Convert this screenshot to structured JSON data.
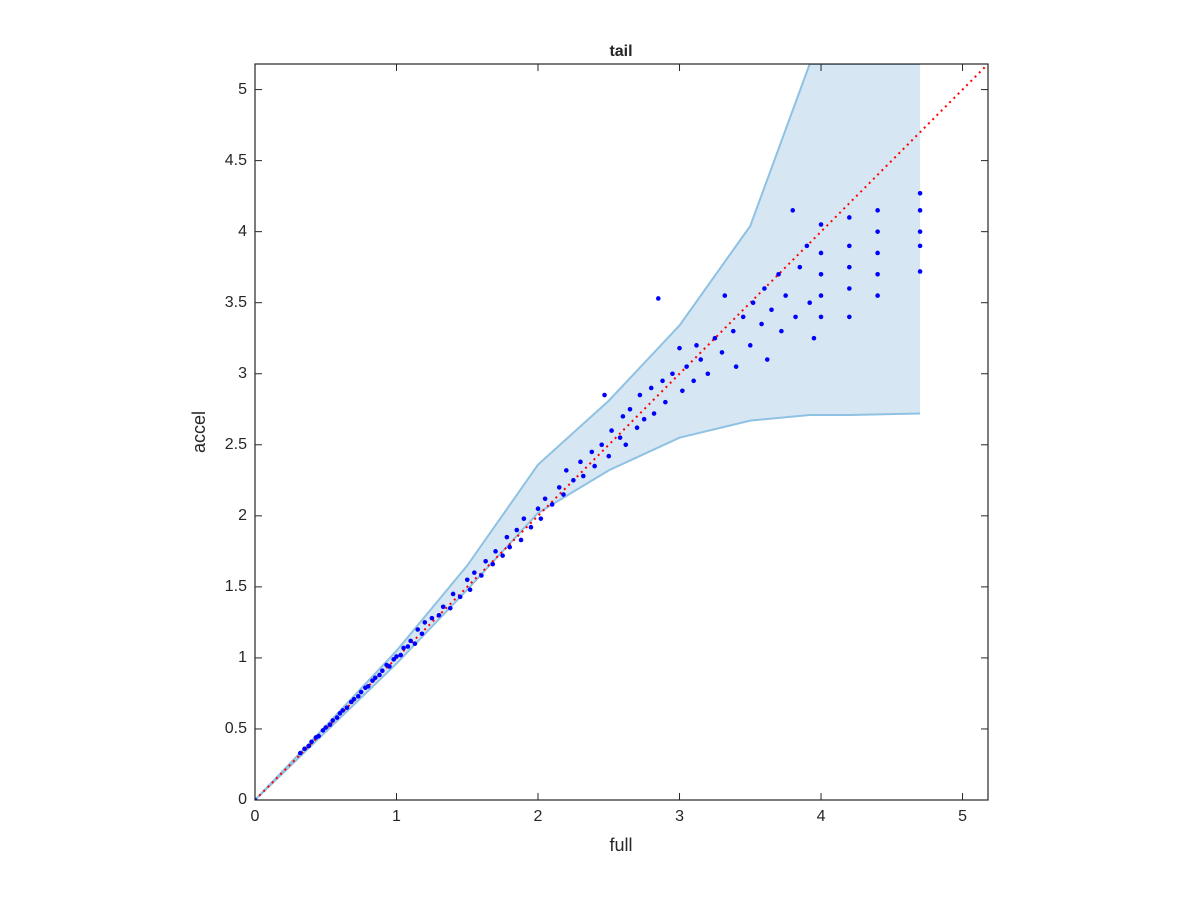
{
  "chart_data": {
    "type": "scatter",
    "title": "tail",
    "x_label": "full",
    "y_label": "accel",
    "xlim": [
      0,
      5.18
    ],
    "ylim": [
      0,
      5.18
    ],
    "xticks": [
      0,
      1,
      2,
      3,
      4,
      5
    ],
    "yticks": [
      0,
      0.5,
      1,
      1.5,
      2,
      2.5,
      3,
      3.5,
      4,
      4.5,
      5
    ],
    "color": "#0000ff",
    "band": {
      "color": "#d6e7f3",
      "edge_color": "#8fc1e3",
      "x": [
        0,
        0.5,
        1,
        1.5,
        2,
        2.5,
        3,
        3.5,
        3.92,
        4.2,
        4.7
      ],
      "upper": [
        0,
        0.52,
        1.05,
        1.65,
        2.36,
        2.81,
        3.34,
        4.04,
        5.18,
        5.18,
        5.18
      ],
      "lower": [
        0,
        0.48,
        0.96,
        1.48,
        2.02,
        2.32,
        2.55,
        2.67,
        2.71,
        2.71,
        2.72
      ]
    },
    "reference_line": {
      "color": "#ff0000",
      "x": [
        0,
        5.18
      ],
      "y": [
        0,
        5.18
      ]
    },
    "x": [
      0,
      0.32,
      0.35,
      0.38,
      0.4,
      0.43,
      0.45,
      0.48,
      0.5,
      0.53,
      0.55,
      0.58,
      0.6,
      0.62,
      0.65,
      0.68,
      0.7,
      0.73,
      0.75,
      0.78,
      0.8,
      0.83,
      0.85,
      0.88,
      0.9,
      0.93,
      0.95,
      0.98,
      1.0,
      1.03,
      1.05,
      1.08,
      1.1,
      1.13,
      1.15,
      1.18,
      1.2,
      1.25,
      1.3,
      1.33,
      1.38,
      1.4,
      1.45,
      1.5,
      1.52,
      1.55,
      1.6,
      1.63,
      1.68,
      1.7,
      1.75,
      1.78,
      1.8,
      1.85,
      1.88,
      1.9,
      1.95,
      2.0,
      2.02,
      2.05,
      2.1,
      2.15,
      2.18,
      2.2,
      2.25,
      2.3,
      2.32,
      2.38,
      2.4,
      2.45,
      2.47,
      2.5,
      2.52,
      2.58,
      2.6,
      2.62,
      2.65,
      2.7,
      2.72,
      2.75,
      2.8,
      2.82,
      2.85,
      2.88,
      2.9,
      2.95,
      3.0,
      3.02,
      3.05,
      3.1,
      3.12,
      3.15,
      3.2,
      3.25,
      3.3,
      3.32,
      3.38,
      3.4,
      3.45,
      3.5,
      3.52,
      3.58,
      3.6,
      3.62,
      3.65,
      3.7,
      3.72,
      3.75,
      3.8,
      3.82,
      3.85,
      3.9,
      3.92,
      3.95,
      4.0,
      4.0,
      4.0,
      4.0,
      4.0,
      4.2,
      4.2,
      4.2,
      4.2,
      4.2,
      4.4,
      4.4,
      4.4,
      4.4,
      4.4,
      4.7,
      4.7,
      4.7,
      4.7,
      4.7
    ],
    "y": [
      0,
      0.33,
      0.36,
      0.38,
      0.41,
      0.44,
      0.45,
      0.49,
      0.51,
      0.53,
      0.56,
      0.58,
      0.61,
      0.63,
      0.65,
      0.69,
      0.71,
      0.73,
      0.76,
      0.79,
      0.8,
      0.84,
      0.86,
      0.88,
      0.91,
      0.95,
      0.94,
      0.99,
      1.01,
      1.02,
      1.07,
      1.08,
      1.12,
      1.1,
      1.2,
      1.17,
      1.25,
      1.28,
      1.3,
      1.36,
      1.35,
      1.45,
      1.43,
      1.55,
      1.48,
      1.6,
      1.58,
      1.68,
      1.66,
      1.75,
      1.72,
      1.85,
      1.78,
      1.9,
      1.83,
      1.98,
      1.92,
      2.05,
      1.98,
      2.12,
      2.08,
      2.2,
      2.15,
      2.32,
      2.25,
      2.38,
      2.28,
      2.45,
      2.35,
      2.5,
      2.85,
      2.42,
      2.6,
      2.55,
      2.7,
      2.5,
      2.75,
      2.62,
      2.85,
      2.68,
      2.9,
      2.72,
      3.53,
      2.95,
      2.8,
      3.0,
      3.18,
      2.88,
      3.05,
      2.95,
      3.2,
      3.1,
      3.0,
      3.25,
      3.15,
      3.55,
      3.3,
      3.05,
      3.4,
      3.2,
      3.5,
      3.35,
      3.6,
      3.1,
      3.45,
      3.7,
      3.3,
      3.55,
      4.15,
      3.4,
      3.75,
      3.9,
      3.5,
      3.25,
      4.05,
      3.85,
      3.7,
      3.55,
      3.4,
      4.1,
      3.9,
      3.75,
      3.6,
      3.4,
      4.15,
      4.0,
      3.85,
      3.7,
      3.55,
      4.27,
      4.15,
      4.0,
      3.9,
      3.72
    ]
  }
}
